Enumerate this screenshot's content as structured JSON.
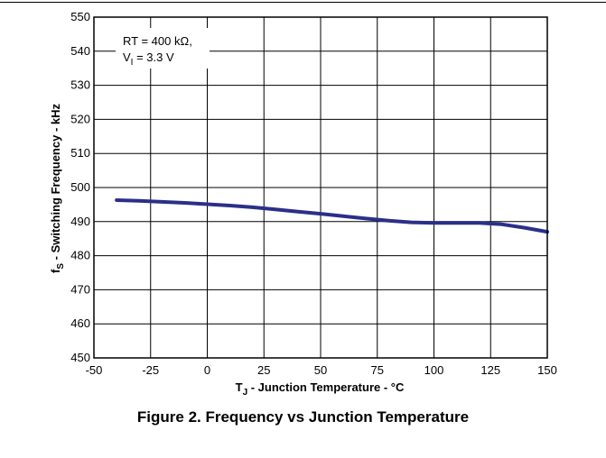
{
  "caption": "Figure 2. Frequency vs Junction Temperature",
  "chart_data": {
    "type": "line",
    "xlabel": {
      "main": "T",
      "sub": "J",
      "rest": " - Junction Temperature - °C"
    },
    "ylabel": {
      "main": "f",
      "sub": "S",
      "rest": " - Switching Frequency - kHz"
    },
    "xlim": [
      -50,
      150
    ],
    "ylim": [
      450,
      550
    ],
    "xticks": [
      -50,
      -25,
      0,
      25,
      50,
      75,
      100,
      125,
      150
    ],
    "yticks": [
      450,
      460,
      470,
      480,
      490,
      500,
      510,
      520,
      530,
      540,
      550
    ],
    "grid": true,
    "legend_placement": "top-left",
    "annotation": {
      "line1": "RT = 400 kΩ,",
      "line2_main": "V",
      "line2_sub": "I",
      "line2_rest": " = 3.3 V"
    },
    "line_color": "#2b2f8a",
    "series": [
      {
        "x": [
          -40,
          -30,
          -20,
          -10,
          0,
          10,
          20,
          30,
          40,
          50,
          60,
          70,
          80,
          90,
          100,
          110,
          120,
          130,
          140,
          150
        ],
        "values": [
          496.3,
          496.1,
          495.8,
          495.5,
          495.1,
          494.7,
          494.2,
          493.6,
          492.9,
          492.3,
          491.6,
          490.9,
          490.3,
          489.8,
          489.6,
          489.6,
          489.6,
          489.2,
          488.2,
          487.0
        ]
      }
    ]
  }
}
